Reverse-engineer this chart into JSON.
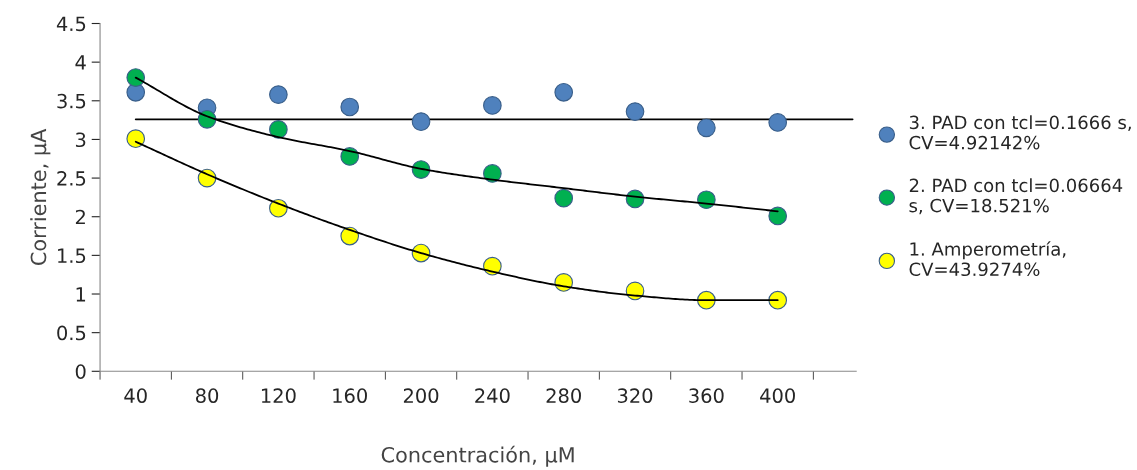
{
  "chart_data": {
    "type": "scatter",
    "xlabel": "Concentración, µM",
    "ylabel": "Corriente, µA",
    "categories": [
      "40",
      "80",
      "120",
      "160",
      "200",
      "240",
      "280",
      "320",
      "360",
      "400"
    ],
    "ylim": [
      0,
      4.5
    ],
    "yticks": [
      0,
      0.5,
      1,
      1.5,
      2,
      2.5,
      3,
      3.5,
      4,
      4.5
    ],
    "grid": false,
    "legend": "right",
    "marker": "circle",
    "series": [
      {
        "name": "3. PAD con tcl=0.1666 s,\nCV=4.92142%",
        "color": "#4f81bd",
        "values": [
          3.61,
          3.41,
          3.58,
          3.42,
          3.23,
          3.44,
          3.61,
          3.36,
          3.15,
          3.22
        ]
      },
      {
        "name": "2. PAD con tcl=0.06664\ns, CV=18.521%",
        "color": "#00b050",
        "values": [
          3.8,
          3.26,
          3.13,
          2.78,
          2.61,
          2.56,
          2.24,
          2.23,
          2.22,
          2.01
        ]
      },
      {
        "name": "1. Amperometría,\nCV=43.9274%",
        "color": "#ffff00",
        "values": [
          3.01,
          2.5,
          2.11,
          1.75,
          1.53,
          1.36,
          1.15,
          1.04,
          0.92,
          0.92
        ]
      },
      {
        "type": "line",
        "marker": "none",
        "color": "#000000",
        "values": [
          3.8,
          3.3,
          3.03,
          2.85,
          2.62,
          2.48,
          2.37,
          2.26,
          2.17,
          2.07
        ]
      },
      {
        "type": "line",
        "marker": "none",
        "color": "#000000",
        "values": [
          2.97,
          2.55,
          2.17,
          1.83,
          1.53,
          1.29,
          1.1,
          0.98,
          0.92,
          0.92
        ]
      }
    ],
    "ref_lines": [
      {
        "axis": "y",
        "value": 3.26,
        "color": "#000000"
      }
    ]
  }
}
